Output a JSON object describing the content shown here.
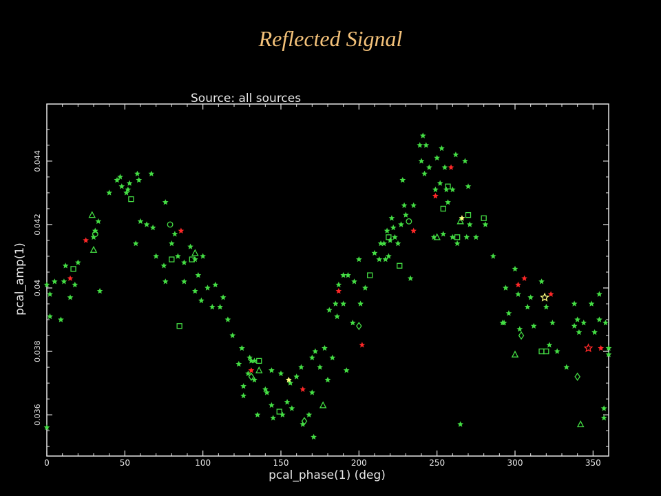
{
  "slide": {
    "title": "Reflected Signal"
  },
  "chart_data": {
    "type": "scatter",
    "title": "Source: all sources",
    "xlabel": "pcal_phase(1) (deg)",
    "ylabel": "pcal_amp(1)",
    "xlim": [
      0,
      360
    ],
    "ylim": [
      0.0347,
      0.0458
    ],
    "x_ticks": [
      0,
      50,
      100,
      150,
      200,
      250,
      300,
      350
    ],
    "x_tick_labels": [
      "0",
      "50",
      "100",
      "150",
      "200",
      "250",
      "300",
      "350"
    ],
    "y_ticks": [
      0.036,
      0.038,
      0.04,
      0.042,
      0.044
    ],
    "y_tick_labels": [
      "0.036",
      "0.038",
      "0.04",
      "0.042",
      "0.044"
    ],
    "grid": false,
    "colors": {
      "background": "#000000",
      "axes": "#e6e6e6",
      "green": "#44dd44",
      "red": "#ff2828",
      "yellow": "#ffff80"
    },
    "series": [
      {
        "color": "#44dd44",
        "marker": "star",
        "points": [
          [
            0,
            0.0356
          ],
          [
            0,
            0.0401
          ],
          [
            2,
            0.0398
          ],
          [
            2,
            0.0391
          ],
          [
            5,
            0.0402
          ],
          [
            9,
            0.039
          ],
          [
            11,
            0.0402
          ],
          [
            12,
            0.0407
          ],
          [
            15,
            0.0397
          ],
          [
            18,
            0.0401
          ],
          [
            20,
            0.0408
          ],
          [
            30,
            0.0416
          ],
          [
            31,
            0.0418
          ],
          [
            33,
            0.0421
          ],
          [
            34,
            0.0399
          ],
          [
            40,
            0.043
          ],
          [
            45,
            0.0434
          ],
          [
            47,
            0.0435
          ],
          [
            48,
            0.0432
          ],
          [
            51,
            0.043
          ],
          [
            52,
            0.0431
          ],
          [
            53,
            0.0433
          ],
          [
            57,
            0.0414
          ],
          [
            58,
            0.0436
          ],
          [
            59,
            0.0434
          ],
          [
            60,
            0.0421
          ],
          [
            64,
            0.042
          ],
          [
            67,
            0.0436
          ],
          [
            68,
            0.0419
          ],
          [
            70,
            0.041
          ],
          [
            75,
            0.0407
          ],
          [
            76,
            0.0427
          ],
          [
            76,
            0.0402
          ],
          [
            80,
            0.0414
          ],
          [
            82,
            0.0417
          ],
          [
            84,
            0.041
          ],
          [
            88,
            0.0408
          ],
          [
            88,
            0.0402
          ],
          [
            92,
            0.0413
          ],
          [
            95,
            0.0409
          ],
          [
            95,
            0.0399
          ],
          [
            97,
            0.0404
          ],
          [
            99,
            0.0396
          ],
          [
            100,
            0.041
          ],
          [
            103,
            0.04
          ],
          [
            106,
            0.0394
          ],
          [
            108,
            0.0401
          ],
          [
            111,
            0.0394
          ],
          [
            113,
            0.0397
          ],
          [
            116,
            0.039
          ],
          [
            119,
            0.0385
          ],
          [
            123,
            0.0376
          ],
          [
            125,
            0.0381
          ],
          [
            126,
            0.0366
          ],
          [
            126,
            0.0369
          ],
          [
            129,
            0.0373
          ],
          [
            130,
            0.0378
          ],
          [
            131,
            0.0377
          ],
          [
            133,
            0.0377
          ],
          [
            133,
            0.0371
          ],
          [
            135,
            0.036
          ],
          [
            140,
            0.0368
          ],
          [
            141,
            0.0367
          ],
          [
            144,
            0.0374
          ],
          [
            144,
            0.0363
          ],
          [
            145,
            0.0359
          ],
          [
            150,
            0.0373
          ],
          [
            151,
            0.036
          ],
          [
            154,
            0.0364
          ],
          [
            156,
            0.037
          ],
          [
            157,
            0.0362
          ],
          [
            160,
            0.0372
          ],
          [
            163,
            0.0375
          ],
          [
            164,
            0.0357
          ],
          [
            168,
            0.036
          ],
          [
            170,
            0.0378
          ],
          [
            170,
            0.0367
          ],
          [
            171,
            0.0353
          ],
          [
            172,
            0.038
          ],
          [
            175,
            0.0375
          ],
          [
            178,
            0.0381
          ],
          [
            180,
            0.0371
          ],
          [
            181,
            0.0393
          ],
          [
            183,
            0.0378
          ],
          [
            185,
            0.0395
          ],
          [
            186,
            0.0391
          ],
          [
            187,
            0.0401
          ],
          [
            190,
            0.0395
          ],
          [
            190,
            0.0404
          ],
          [
            192,
            0.0374
          ],
          [
            193,
            0.0404
          ],
          [
            196,
            0.0389
          ],
          [
            197,
            0.0402
          ],
          [
            200,
            0.0409
          ],
          [
            201,
            0.0395
          ],
          [
            204,
            0.04
          ],
          [
            210,
            0.0411
          ],
          [
            213,
            0.0409
          ],
          [
            214,
            0.0414
          ],
          [
            216,
            0.0414
          ],
          [
            217,
            0.0409
          ],
          [
            218,
            0.0418
          ],
          [
            219,
            0.041
          ],
          [
            220,
            0.0415
          ],
          [
            221,
            0.0422
          ],
          [
            222,
            0.0419
          ],
          [
            223,
            0.0416
          ],
          [
            225,
            0.0414
          ],
          [
            227,
            0.042
          ],
          [
            228,
            0.0434
          ],
          [
            229,
            0.0426
          ],
          [
            230,
            0.0423
          ],
          [
            233,
            0.0403
          ],
          [
            235,
            0.0426
          ],
          [
            239,
            0.0445
          ],
          [
            240,
            0.044
          ],
          [
            241,
            0.0448
          ],
          [
            242,
            0.0436
          ],
          [
            243,
            0.0445
          ],
          [
            245,
            0.0438
          ],
          [
            248,
            0.0416
          ],
          [
            249,
            0.0431
          ],
          [
            250,
            0.0441
          ],
          [
            252,
            0.0433
          ],
          [
            253,
            0.0444
          ],
          [
            254,
            0.0417
          ],
          [
            255,
            0.0438
          ],
          [
            256,
            0.0431
          ],
          [
            257,
            0.0427
          ],
          [
            260,
            0.0431
          ],
          [
            260,
            0.0416
          ],
          [
            262,
            0.0442
          ],
          [
            263,
            0.0414
          ],
          [
            265,
            0.0357
          ],
          [
            268,
            0.044
          ],
          [
            269,
            0.0416
          ],
          [
            270,
            0.0432
          ],
          [
            271,
            0.042
          ],
          [
            275,
            0.0416
          ],
          [
            281,
            0.042
          ],
          [
            286,
            0.041
          ],
          [
            292,
            0.0389
          ],
          [
            293,
            0.0389
          ],
          [
            294,
            0.04
          ],
          [
            296,
            0.0392
          ],
          [
            300,
            0.0406
          ],
          [
            302,
            0.0398
          ],
          [
            303,
            0.0387
          ],
          [
            308,
            0.0394
          ],
          [
            310,
            0.0397
          ],
          [
            312,
            0.0388
          ],
          [
            317,
            0.0402
          ],
          [
            320,
            0.0394
          ],
          [
            322,
            0.0382
          ],
          [
            324,
            0.0389
          ],
          [
            327,
            0.038
          ],
          [
            333,
            0.0375
          ],
          [
            338,
            0.0388
          ],
          [
            338,
            0.0395
          ],
          [
            340,
            0.039
          ],
          [
            341,
            0.0386
          ],
          [
            344,
            0.0389
          ],
          [
            349,
            0.0395
          ],
          [
            351,
            0.0386
          ],
          [
            354,
            0.039
          ],
          [
            354,
            0.0398
          ],
          [
            357,
            0.0359
          ],
          [
            357,
            0.0362
          ],
          [
            358,
            0.0389
          ],
          [
            360,
            0.0379
          ],
          [
            360,
            0.0381
          ]
        ]
      },
      {
        "color": "#44dd44",
        "marker": "square",
        "points": [
          [
            17,
            0.0406
          ],
          [
            54,
            0.0428
          ],
          [
            80,
            0.0409
          ],
          [
            85,
            0.0388
          ],
          [
            93,
            0.0409
          ],
          [
            136,
            0.0377
          ],
          [
            149,
            0.0361
          ],
          [
            207,
            0.0404
          ],
          [
            219,
            0.0416
          ],
          [
            226,
            0.0407
          ],
          [
            254,
            0.0425
          ],
          [
            257,
            0.0432
          ],
          [
            263,
            0.0416
          ],
          [
            270,
            0.0423
          ],
          [
            280,
            0.0422
          ],
          [
            317,
            0.038
          ],
          [
            320,
            0.038
          ]
        ]
      },
      {
        "color": "#44dd44",
        "marker": "triangle",
        "points": [
          [
            29,
            0.0423
          ],
          [
            30,
            0.0412
          ],
          [
            95,
            0.0411
          ],
          [
            136,
            0.0374
          ],
          [
            177,
            0.0363
          ],
          [
            250,
            0.0416
          ],
          [
            265,
            0.0421
          ],
          [
            300,
            0.0379
          ],
          [
            342,
            0.0357
          ]
        ]
      },
      {
        "color": "#44dd44",
        "marker": "circle",
        "points": [
          [
            31,
            0.0417
          ],
          [
            79,
            0.042
          ],
          [
            232,
            0.0421
          ]
        ]
      },
      {
        "color": "#44dd44",
        "marker": "diamond",
        "points": [
          [
            131,
            0.0372
          ],
          [
            165,
            0.0358
          ],
          [
            200,
            0.0388
          ],
          [
            304,
            0.0385
          ],
          [
            340,
            0.0372
          ]
        ]
      },
      {
        "color": "#ff2828",
        "marker": "star",
        "points": [
          [
            15,
            0.0403
          ],
          [
            25,
            0.0415
          ],
          [
            86,
            0.0418
          ],
          [
            131,
            0.0374
          ],
          [
            164,
            0.0368
          ],
          [
            187,
            0.0399
          ],
          [
            202,
            0.0382
          ],
          [
            235,
            0.0418
          ],
          [
            249,
            0.0429
          ],
          [
            259,
            0.0438
          ],
          [
            302,
            0.0401
          ],
          [
            306,
            0.0403
          ],
          [
            323,
            0.0398
          ],
          [
            355,
            0.0381
          ]
        ]
      },
      {
        "color": "#ff2828",
        "marker": "star-outline",
        "points": [
          [
            347,
            0.0381
          ]
        ]
      },
      {
        "color": "#ffff80",
        "marker": "star",
        "points": [
          [
            155,
            0.0371
          ],
          [
            266,
            0.0422
          ]
        ]
      },
      {
        "color": "#ffff80",
        "marker": "star-outline",
        "points": [
          [
            319,
            0.0397
          ]
        ]
      }
    ]
  }
}
